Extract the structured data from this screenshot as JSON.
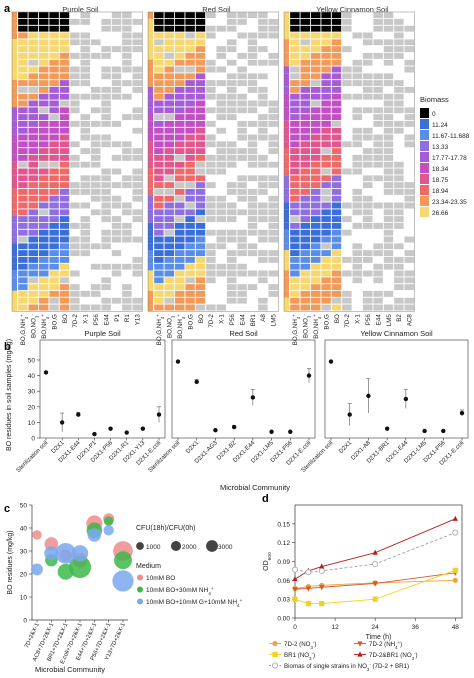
{
  "panels": {
    "a": {
      "letter": "a"
    },
    "b": {
      "letter": "b"
    },
    "c": {
      "letter": "c"
    },
    "d": {
      "letter": "d"
    }
  },
  "colors": {
    "grid_on": "#ffffff",
    "grid_off": "#c8c8c8",
    "point": "#111111",
    "med1": "#f08c8c",
    "med2": "#3cb84a",
    "med3": "#7aa7f0",
    "d_orange": "#f0a23c",
    "d_yellow": "#f0d21e",
    "d_red": "#d8582c",
    "d_darkred": "#b41e1e",
    "d_grey": "#a0a0a0"
  },
  "chart_data": [
    {
      "panel": "a",
      "type": "heatmap",
      "soils": [
        "Purple Soil",
        "Red Soil",
        "Yellow Cinnamon Soil"
      ],
      "columns": [
        [
          "BO,G,NH4+",
          "BO,NO3-",
          "BO,NH4+",
          "BO,G",
          "BO",
          "7D-2",
          "X-1",
          "P56",
          "E44",
          "P1",
          "R1",
          "Y13"
        ],
        [
          "BO,G,NH4+",
          "BO,NO3-",
          "BO,NH4+",
          "BO,G",
          "BO",
          "7D-2",
          "X-1",
          "P56",
          "E44",
          "BR1",
          "A8",
          "LM5"
        ],
        [
          "BO,G,NH4+",
          "BO,NO3-",
          "BO,NH4+",
          "BO,G",
          "BO",
          "7D-2",
          "X-1",
          "P56",
          "E44",
          "LM5",
          "B2",
          "AC8"
        ]
      ],
      "legend_title": "Biomass",
      "legend": [
        {
          "label": "0",
          "color": "#000000"
        },
        {
          "label": "11.24",
          "color": "#3b6fd8"
        },
        {
          "label": "11.67-11.688",
          "color": "#5a8de8"
        },
        {
          "label": "13.33",
          "color": "#8f6fe0"
        },
        {
          "label": "17.77-17.78",
          "color": "#a55cd6"
        },
        {
          "label": "18.34",
          "color": "#c34fc4"
        },
        {
          "label": "18.75",
          "color": "#e0578f"
        },
        {
          "label": "18.94",
          "color": "#ee6a6a"
        },
        {
          "label": "23.34-23.35",
          "color": "#f29a5a"
        },
        {
          "label": "26.66",
          "color": "#f7d870"
        }
      ]
    },
    {
      "panel": "b",
      "type": "scatter",
      "ylabel": "BO residues in soil samples (mg/kg)",
      "xlabel": "Microbial Community",
      "ylim": [
        0,
        50
      ],
      "yticks": [
        0,
        10,
        20,
        30,
        40,
        50
      ],
      "subplots": [
        {
          "title": "Purple Soil",
          "categories": [
            "Sterilization soil",
            "D2X1",
            "D2X1-E44",
            "D2X1-P1",
            "D2X1-P56",
            "D2X1-R1",
            "D2X1-Y13",
            "D2X1-E.coli"
          ],
          "values": [
            42,
            10,
            15,
            2.5,
            6,
            3.5,
            6,
            15
          ],
          "errors": [
            0.5,
            6,
            1.5,
            0.3,
            0.5,
            0.3,
            0.6,
            5
          ]
        },
        {
          "title": "Red Soil",
          "categories": [
            "Sterilization soil",
            "D2X1",
            "D2X1-AG3",
            "D2X1-B2",
            "D2X1-E44",
            "D2X1-LM5",
            "D2X1-P56",
            "D2X1-E.coli"
          ],
          "values": [
            49,
            36,
            5,
            7,
            26,
            4,
            4,
            40
          ],
          "errors": [
            0.3,
            1.5,
            0.3,
            1,
            5,
            0.3,
            0.3,
            4.5
          ]
        },
        {
          "title": "Yellow Cinnamon Soil",
          "categories": [
            "Sterilization soil",
            "D2X1",
            "D2X1-A8",
            "D2X1-BR1",
            "D2X1-E44",
            "D2X1-LM5",
            "D2X1-P56",
            "D2X1-E.coli"
          ],
          "values": [
            49,
            15,
            27,
            6,
            25,
            4.5,
            4.5,
            16
          ],
          "errors": [
            0.3,
            7,
            11,
            0.3,
            6,
            0.3,
            0.3,
            2
          ]
        }
      ]
    },
    {
      "panel": "c",
      "type": "scatter",
      "ylabel": "BO residues (mg/kg)",
      "xlabel": "Microbial Community",
      "ylim": [
        0,
        50
      ],
      "yticks": [
        0,
        10,
        20,
        30,
        40,
        50
      ],
      "categories": [
        "7D+2&X-1",
        "AC8+7D+2&X-1",
        "BR1+7D+2&X-1",
        "E.coli+7D+2&X-1",
        "E44+7D+2&X-1",
        "P56+7D+2&X-1",
        "Y13+7D+2&X-1"
      ],
      "series": [
        {
          "name": "10mM BO",
          "points": [
            {
              "x": 0,
              "y": 37,
              "cfu": 300
            },
            {
              "x": 1,
              "y": 33,
              "cfu": 900
            },
            {
              "x": 2,
              "y": 28,
              "cfu": 700
            },
            {
              "x": 3,
              "y": 26,
              "cfu": 1100
            },
            {
              "x": 4,
              "y": 42,
              "cfu": 1400
            },
            {
              "x": 5,
              "y": 44,
              "cfu": 500
            },
            {
              "x": 6,
              "y": 30,
              "cfu": 2400
            }
          ]
        },
        {
          "name": "10mM BO+30mM NH4+",
          "points": [
            {
              "x": 1,
              "y": 26,
              "cfu": 700
            },
            {
              "x": 2,
              "y": 21,
              "cfu": 1400
            },
            {
              "x": 3,
              "y": 23,
              "cfu": 3200
            },
            {
              "x": 4,
              "y": 39,
              "cfu": 1300
            },
            {
              "x": 5,
              "y": 43,
              "cfu": 300
            },
            {
              "x": 6,
              "y": 26,
              "cfu": 1900
            }
          ]
        },
        {
          "name": "10mM BO+10mM G+10mM NH4+",
          "points": [
            {
              "x": 0,
              "y": 22,
              "cfu": 600
            },
            {
              "x": 1,
              "y": 29,
              "cfu": 1000
            },
            {
              "x": 2,
              "y": 29,
              "cfu": 2700
            },
            {
              "x": 3,
              "y": 29,
              "cfu": 1500
            },
            {
              "x": 4,
              "y": 37,
              "cfu": 900
            },
            {
              "x": 5,
              "y": 39,
              "cfu": 400
            },
            {
              "x": 6,
              "y": 17,
              "cfu": 2900
            }
          ]
        }
      ],
      "size_legend_title": "CFU(18h)/CFU(0h)",
      "size_legend": [
        "1000",
        "2000",
        "3000"
      ],
      "color_legend_title": "Medium",
      "color_legend": [
        "10mM BO",
        "10mM BO+30mM NH4+",
        "10mM BO+10mM G+10mM NH4+"
      ]
    },
    {
      "panel": "d",
      "type": "line",
      "xlabel": "Time (h)",
      "ylabel": "OD600",
      "x": [
        0,
        4,
        8,
        24,
        48
      ],
      "xlim": [
        0,
        50
      ],
      "ylim": [
        0,
        0.18
      ],
      "xticks": [
        0,
        12,
        24,
        36,
        48
      ],
      "yticks": [
        0,
        0.03,
        0.06,
        0.09,
        0.12,
        0.15
      ],
      "series": [
        {
          "name": "7D-2 (NO3-)",
          "marker": "circle",
          "color": "#f0a23c",
          "values": [
            0.047,
            0.05,
            0.052,
            0.056,
            0.06
          ]
        },
        {
          "name": "7D-2 (NH4+)",
          "marker": "triangle-down",
          "color": "#d8582c",
          "values": [
            0.046,
            0.047,
            0.049,
            0.055,
            0.072
          ]
        },
        {
          "name": "BR1 (NO3-)",
          "marker": "square",
          "color": "#f0d21e",
          "values": [
            0.03,
            0.023,
            0.023,
            0.03,
            0.076
          ]
        },
        {
          "name": "7D-2&BR1 (NO3-)",
          "marker": "triangle-up",
          "color": "#b41e1e",
          "values": [
            0.062,
            0.075,
            0.082,
            0.104,
            0.158
          ]
        },
        {
          "name": "Biomas of single strains in NO3- (7D-2 + BR1)",
          "marker": "open-circle",
          "color": "#a0a0a0",
          "dashed": true,
          "values": [
            0.077,
            0.073,
            0.075,
            0.086,
            0.136
          ]
        }
      ]
    }
  ]
}
